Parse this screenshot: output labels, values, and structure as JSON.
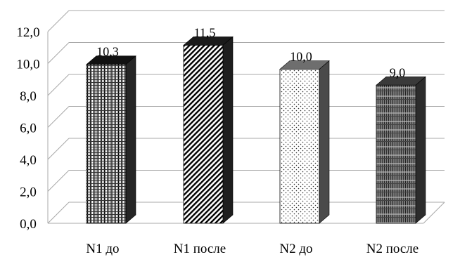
{
  "chart_data": {
    "type": "bar",
    "style": "3d-column",
    "categories": [
      "N1 до",
      "N1 после",
      "N2 до",
      "N2 после"
    ],
    "values": [
      10.3,
      11.5,
      10.0,
      9.0
    ],
    "value_labels": [
      "10,3",
      "11,5",
      "10,0",
      "9,0"
    ],
    "title": "",
    "xlabel": "",
    "ylabel": "",
    "ylim": [
      0,
      12
    ],
    "yticks": [
      "0,0",
      "2,0",
      "4,0",
      "6,0",
      "8,0",
      "10,0",
      "12,0"
    ],
    "grid": true,
    "legend": "none"
  }
}
